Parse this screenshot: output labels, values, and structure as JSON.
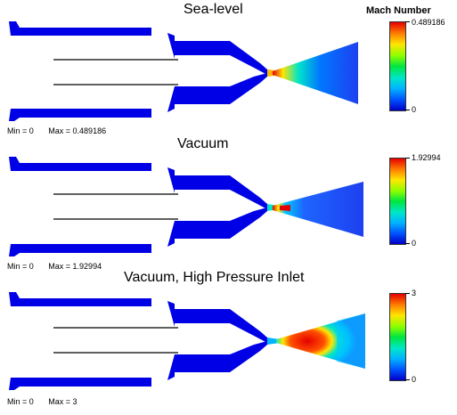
{
  "legend": {
    "title": "Mach Number"
  },
  "panels": [
    {
      "title": "Sea-level",
      "min_label": "Min = 0",
      "max_label": "Max = 0.489186",
      "cbar_max": "0.489186",
      "cbar_min": "0"
    },
    {
      "title": "Vacuum",
      "min_label": "Min = 0",
      "max_label": "Max = 1.92994",
      "cbar_max": "1.92994",
      "cbar_min": "0"
    },
    {
      "title": "Vacuum, High Pressure Inlet",
      "min_label": "Min = 0",
      "max_label": "Max = 3",
      "cbar_max": "3",
      "cbar_min": "0"
    }
  ],
  "colors": {
    "body": "#0000e6",
    "low": "#1e50ff",
    "mid": "#00e6c8",
    "high": "#e60000",
    "outline": "#0000a0"
  }
}
